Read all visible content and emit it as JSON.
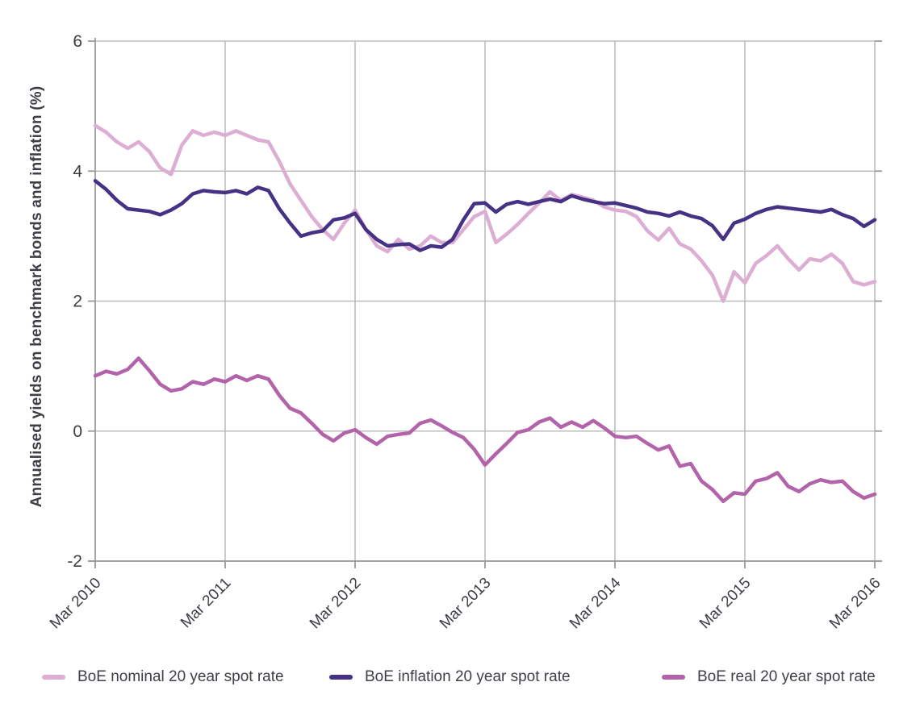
{
  "page": {
    "background": "#ffffff"
  },
  "chart_data": {
    "type": "line",
    "title": "",
    "ylabel": "Annualised yields on benchmark bonds and inflation (%)",
    "xlabel": "",
    "x_unit": "monthly samples, Mar 2010 to Mar 2016",
    "x_tick_labels": [
      "Mar 2010",
      "Mar 2011",
      "Mar 2012",
      "Mar 2013",
      "Mar 2014",
      "Mar 2015",
      "Mar 2016"
    ],
    "y_ticks": [
      6,
      4,
      2,
      0,
      -2
    ],
    "ylim": [
      -2,
      6
    ],
    "grid": true,
    "legend_position": "bottom",
    "colors": {
      "grid": "#bdbdbd",
      "axis": "#9a9a9a",
      "text": "#3e3e46"
    },
    "series": [
      {
        "name": "BoE nominal 20 year spot rate",
        "color": "#dcaed3",
        "values": [
          4.7,
          4.6,
          4.45,
          4.35,
          4.45,
          4.3,
          4.05,
          3.95,
          4.4,
          4.62,
          4.55,
          4.6,
          4.55,
          4.62,
          4.55,
          4.48,
          4.45,
          4.15,
          3.8,
          3.55,
          3.3,
          3.1,
          2.95,
          3.2,
          3.4,
          3.1,
          2.85,
          2.76,
          2.95,
          2.8,
          2.85,
          3.0,
          2.9,
          2.9,
          3.1,
          3.3,
          3.38,
          2.9,
          3.03,
          3.18,
          3.35,
          3.51,
          3.68,
          3.55,
          3.64,
          3.6,
          3.55,
          3.45,
          3.4,
          3.38,
          3.3,
          3.08,
          2.94,
          3.12,
          2.88,
          2.8,
          2.62,
          2.4,
          2.0,
          2.45,
          2.28,
          2.58,
          2.7,
          2.85,
          2.65,
          2.48,
          2.65,
          2.62,
          2.72,
          2.58,
          2.3,
          2.25,
          2.3
        ]
      },
      {
        "name": "BoE inflation 20 year spot rate",
        "color": "#453284",
        "values": [
          3.85,
          3.72,
          3.55,
          3.42,
          3.4,
          3.38,
          3.33,
          3.4,
          3.5,
          3.65,
          3.7,
          3.68,
          3.67,
          3.7,
          3.65,
          3.75,
          3.7,
          3.42,
          3.2,
          3.0,
          3.05,
          3.08,
          3.25,
          3.28,
          3.35,
          3.1,
          2.95,
          2.85,
          2.87,
          2.88,
          2.78,
          2.85,
          2.83,
          2.95,
          3.25,
          3.5,
          3.51,
          3.37,
          3.49,
          3.53,
          3.49,
          3.53,
          3.57,
          3.53,
          3.62,
          3.57,
          3.53,
          3.5,
          3.51,
          3.47,
          3.43,
          3.37,
          3.35,
          3.31,
          3.37,
          3.31,
          3.27,
          3.16,
          2.95,
          3.2,
          3.26,
          3.35,
          3.41,
          3.45,
          3.43,
          3.41,
          3.39,
          3.37,
          3.41,
          3.33,
          3.27,
          3.15,
          3.25
        ]
      },
      {
        "name": "BoE real 20 year spot rate",
        "color": "#b263a9",
        "values": [
          0.85,
          0.92,
          0.88,
          0.95,
          1.12,
          0.93,
          0.72,
          0.62,
          0.65,
          0.76,
          0.72,
          0.8,
          0.76,
          0.85,
          0.78,
          0.85,
          0.8,
          0.55,
          0.35,
          0.28,
          0.12,
          -0.05,
          -0.15,
          -0.03,
          0.02,
          -0.1,
          -0.2,
          -0.08,
          -0.05,
          -0.03,
          0.12,
          0.17,
          0.08,
          -0.02,
          -0.1,
          -0.28,
          -0.52,
          -0.35,
          -0.19,
          -0.02,
          0.02,
          0.14,
          0.2,
          0.06,
          0.14,
          0.06,
          0.16,
          0.05,
          -0.08,
          -0.1,
          -0.08,
          -0.19,
          -0.29,
          -0.23,
          -0.54,
          -0.5,
          -0.77,
          -0.9,
          -1.08,
          -0.95,
          -0.97,
          -0.77,
          -0.73,
          -0.64,
          -0.85,
          -0.93,
          -0.81,
          -0.75,
          -0.79,
          -0.77,
          -0.93,
          -1.03,
          -0.97
        ]
      }
    ]
  }
}
